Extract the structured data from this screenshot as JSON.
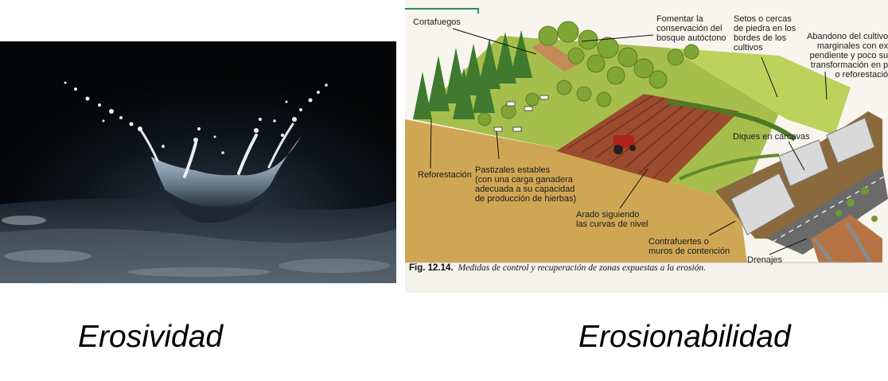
{
  "left_caption": "Erosividad",
  "right_caption": "Erosionabilidad",
  "figure": {
    "number": "Fig. 12.14.",
    "caption": "Medidas de control y recuperación de zonas expuestas a la erosión.",
    "labels": {
      "cortafuegos": "Cortafuegos",
      "fomentar": [
        "Fomentar la",
        "conservación del",
        "bosque autóctono"
      ],
      "setos": [
        "Setos o cercas",
        "de piedra en los",
        "bordes de los",
        "cultivos"
      ],
      "abandono": [
        "Abandono del cultivo",
        "marginales con ex",
        "pendiente y poco su",
        "transformación en p",
        "o reforestació"
      ],
      "reforestacion": "Reforestación",
      "pastizales": [
        "Pastizales estables",
        "(con una carga ganadera",
        "adecuada a su capacidad",
        "de producción de hierbas)"
      ],
      "arado": [
        "Arado siguiendo",
        "las curvas de nivel"
      ],
      "diques": "Diques en cárcavas",
      "contrafuertes": [
        "Contrafuertes o",
        "muros de contención"
      ],
      "drenajes": "Drenajes"
    }
  },
  "colors": {
    "splash_bg": "#050608",
    "field": "#c8a04e",
    "meadow": "#a9c24a",
    "plowed": "#9a4a2c",
    "wall": "#d9d9d9",
    "road": "#6a6a6a"
  }
}
